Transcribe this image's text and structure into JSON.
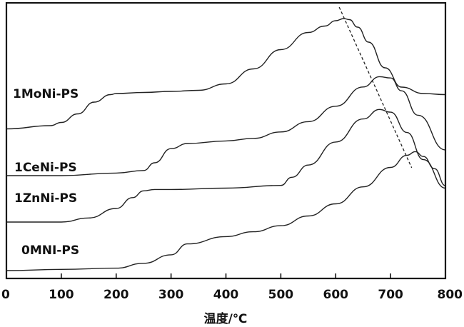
{
  "chart_data": {
    "type": "line",
    "title": "",
    "xlabel": "温度/℃",
    "ylabel": "",
    "xlim": [
      0,
      800
    ],
    "xticks": [
      0,
      100,
      200,
      300,
      400,
      500,
      600,
      700,
      800
    ],
    "grid": false,
    "series": [
      {
        "name": "1MoNi-PS",
        "x": [
          0,
          80,
          100,
          130,
          160,
          190,
          200,
          250,
          300,
          350,
          400,
          450,
          500,
          550,
          580,
          600,
          615,
          625,
          640,
          660,
          690,
          720,
          760,
          800
        ],
        "y": [
          0.05,
          0.08,
          0.11,
          0.19,
          0.3,
          0.37,
          0.38,
          0.39,
          0.4,
          0.41,
          0.47,
          0.61,
          0.79,
          0.95,
          1.01,
          1.06,
          1.08,
          1.07,
          1.0,
          0.86,
          0.62,
          0.44,
          0.38,
          0.37
        ]
      },
      {
        "name": "1CeNi-PS",
        "x": [
          0,
          100,
          200,
          250,
          270,
          300,
          330,
          400,
          450,
          500,
          550,
          600,
          650,
          680,
          700,
          720,
          750,
          800
        ],
        "y": [
          0.0,
          0.0,
          0.02,
          0.04,
          0.1,
          0.21,
          0.25,
          0.27,
          0.29,
          0.34,
          0.42,
          0.54,
          0.69,
          0.77,
          0.76,
          0.66,
          0.47,
          0.2
        ]
      },
      {
        "name": "1ZnNi-PS",
        "x": [
          0,
          100,
          150,
          200,
          230,
          250,
          270,
          300,
          400,
          500,
          520,
          550,
          600,
          650,
          680,
          700,
          730,
          760,
          800
        ],
        "y": [
          0.0,
          0.0,
          0.03,
          0.1,
          0.18,
          0.23,
          0.24,
          0.24,
          0.25,
          0.27,
          0.33,
          0.42,
          0.59,
          0.76,
          0.83,
          0.81,
          0.66,
          0.46,
          0.25
        ]
      },
      {
        "name": "0MNI-PS",
        "x": [
          0,
          100,
          200,
          250,
          300,
          330,
          400,
          450,
          500,
          550,
          600,
          650,
          700,
          730,
          745,
          760,
          780,
          800
        ],
        "y": [
          0.0,
          0.01,
          0.02,
          0.06,
          0.13,
          0.22,
          0.28,
          0.32,
          0.37,
          0.45,
          0.55,
          0.69,
          0.85,
          0.95,
          0.98,
          0.94,
          0.84,
          0.7
        ]
      }
    ],
    "annotations": [
      {
        "type": "dashed-line",
        "points": [
          [
            622,
            1.1
          ],
          [
            745,
            -0.02
          ]
        ]
      }
    ]
  }
}
